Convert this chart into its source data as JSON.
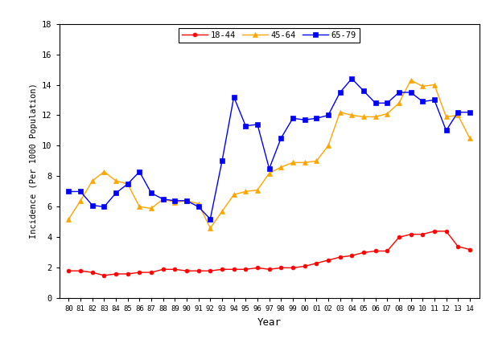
{
  "years": [
    "80",
    "81",
    "82",
    "83",
    "84",
    "85",
    "86",
    "87",
    "88",
    "89",
    "90",
    "91",
    "92",
    "93",
    "94",
    "95",
    "96",
    "97",
    "98",
    "99",
    "00",
    "01",
    "02",
    "03",
    "04",
    "05",
    "06",
    "07",
    "08",
    "09",
    "10",
    "11",
    "12",
    "13",
    "14"
  ],
  "age_18_44": [
    1.8,
    1.8,
    1.7,
    1.5,
    1.6,
    1.6,
    1.7,
    1.7,
    1.9,
    1.9,
    1.8,
    1.8,
    1.8,
    1.9,
    1.9,
    1.9,
    2.0,
    1.9,
    2.0,
    2.0,
    2.1,
    2.3,
    2.5,
    2.7,
    2.8,
    3.0,
    3.1,
    3.1,
    4.0,
    4.2,
    4.2,
    4.4,
    4.4,
    3.4,
    3.2
  ],
  "age_45_64": [
    5.2,
    6.4,
    7.7,
    8.3,
    7.7,
    7.5,
    6.0,
    5.9,
    6.5,
    6.3,
    6.4,
    6.2,
    4.6,
    5.7,
    6.8,
    7.0,
    7.1,
    8.2,
    8.6,
    8.9,
    8.9,
    9.0,
    10.0,
    12.2,
    12.0,
    11.9,
    11.9,
    12.1,
    12.8,
    14.3,
    13.9,
    14.0,
    11.9,
    12.0,
    10.5
  ],
  "age_65_79": [
    7.0,
    7.0,
    6.1,
    6.0,
    6.9,
    7.5,
    8.3,
    6.9,
    6.5,
    6.4,
    6.4,
    6.0,
    5.2,
    9.0,
    13.2,
    11.3,
    11.4,
    8.5,
    10.5,
    11.8,
    11.7,
    11.8,
    12.0,
    13.5,
    14.4,
    13.6,
    12.8,
    12.8,
    13.5,
    13.5,
    12.9,
    13.0,
    11.0,
    12.2,
    12.2
  ],
  "color_18_44": "#FF0000",
  "color_45_64": "#FFA500",
  "color_65_79": "#0000FF",
  "ylabel": "Incidence (Per 1000 Population)",
  "xlabel": "Year",
  "ylim": [
    0,
    18
  ],
  "yticks": [
    0,
    2,
    4,
    6,
    8,
    10,
    12,
    14,
    16,
    18
  ],
  "bg_color": "#FFFFFF",
  "legend_labels": [
    "18-44",
    "45-64",
    "65-79"
  ]
}
